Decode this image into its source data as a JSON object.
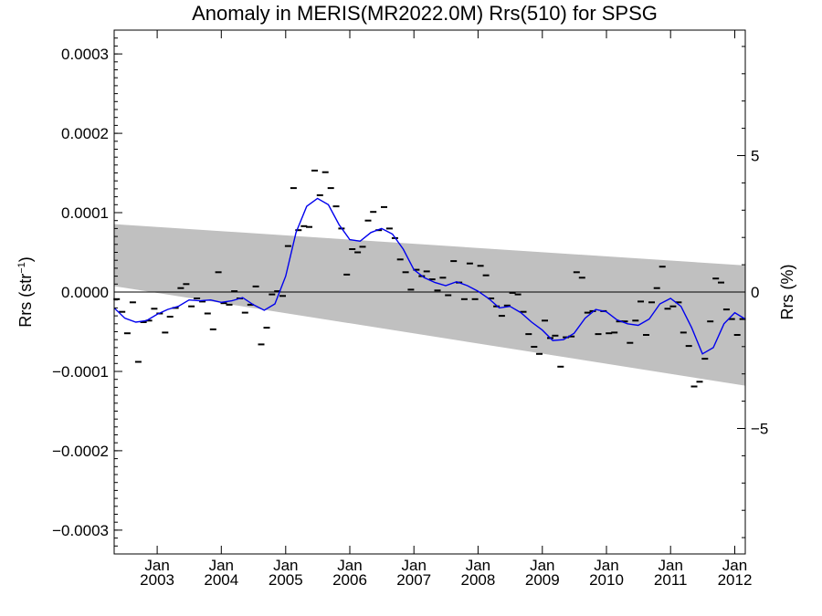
{
  "chart_data": {
    "type": "scatter",
    "title": "Anomaly in MERIS(MR2022.0M) Rrs(510) for SPSG",
    "ylabel": "Rrs (str",
    "ylabel_sup": "−1",
    "ylabel_close": ")",
    "y2label": "Rrs (%)",
    "ylim": [
      -0.00033,
      0.00033
    ],
    "y2lim": [
      -9.6,
      9.6
    ],
    "xlim": [
      "2002-05-01",
      "2012-03-01"
    ],
    "yticks": [
      {
        "v": 0.0003,
        "label": "0.0003"
      },
      {
        "v": 0.0002,
        "label": "0.0002"
      },
      {
        "v": 0.0001,
        "label": "0.0001"
      },
      {
        "v": 0.0,
        "label": "0.0000"
      },
      {
        "v": -0.0001,
        "label": "−0.0001"
      },
      {
        "v": -0.0002,
        "label": "−0.0002"
      },
      {
        "v": -0.0003,
        "label": "−0.0003"
      }
    ],
    "y2ticks": [
      {
        "v": 5,
        "label": "5"
      },
      {
        "v": 0,
        "label": "0"
      },
      {
        "v": -5,
        "label": "−5"
      }
    ],
    "xticks": [
      {
        "date": "2003-01",
        "month": "Jan",
        "year": "2003"
      },
      {
        "date": "2004-01",
        "month": "Jan",
        "year": "2004"
      },
      {
        "date": "2005-01",
        "month": "Jan",
        "year": "2005"
      },
      {
        "date": "2006-01",
        "month": "Jan",
        "year": "2006"
      },
      {
        "date": "2007-01",
        "month": "Jan",
        "year": "2007"
      },
      {
        "date": "2008-01",
        "month": "Jan",
        "year": "2008"
      },
      {
        "date": "2009-01",
        "month": "Jan",
        "year": "2009"
      },
      {
        "date": "2010-01",
        "month": "Jan",
        "year": "2010"
      },
      {
        "date": "2011-01",
        "month": "Jan",
        "year": "2011"
      },
      {
        "date": "2012-01",
        "month": "Jan",
        "year": "2012"
      }
    ],
    "band": {
      "color": "#c0c0c0",
      "x": [
        "2002-05-01",
        "2012-03-01"
      ],
      "upper": [
        8.55e-05,
        3.35e-05
      ],
      "lower": [
        7.5e-06,
        -0.000118
      ]
    },
    "zero_line": 0,
    "monthly_points": {
      "color": "#000000",
      "x": [
        "2002-05",
        "2002-06",
        "2002-07",
        "2002-08",
        "2002-09",
        "2002-10",
        "2002-11",
        "2002-12",
        "2003-01",
        "2003-02",
        "2003-03",
        "2003-04",
        "2003-05",
        "2003-06",
        "2003-07",
        "2003-08",
        "2003-09",
        "2003-10",
        "2003-11",
        "2003-12",
        "2004-01",
        "2004-02",
        "2004-03",
        "2004-04",
        "2004-05",
        "2004-06",
        "2004-07",
        "2004-08",
        "2004-09",
        "2004-10",
        "2004-11",
        "2004-12",
        "2005-01",
        "2005-02",
        "2005-03",
        "2005-04",
        "2005-05",
        "2005-06",
        "2005-07",
        "2005-08",
        "2005-09",
        "2005-10",
        "2005-11",
        "2005-12",
        "2006-01",
        "2006-02",
        "2006-03",
        "2006-04",
        "2006-05",
        "2006-06",
        "2006-07",
        "2006-08",
        "2006-09",
        "2006-10",
        "2006-11",
        "2006-12",
        "2007-01",
        "2007-02",
        "2007-03",
        "2007-04",
        "2007-05",
        "2007-06",
        "2007-07",
        "2007-08",
        "2007-09",
        "2007-10",
        "2007-11",
        "2007-12",
        "2008-01",
        "2008-02",
        "2008-03",
        "2008-04",
        "2008-05",
        "2008-06",
        "2008-07",
        "2008-08",
        "2008-09",
        "2008-10",
        "2008-11",
        "2008-12",
        "2009-01",
        "2009-02",
        "2009-03",
        "2009-04",
        "2009-05",
        "2009-06",
        "2009-07",
        "2009-08",
        "2009-09",
        "2009-10",
        "2009-11",
        "2009-12",
        "2010-01",
        "2010-02",
        "2010-03",
        "2010-04",
        "2010-05",
        "2010-06",
        "2010-07",
        "2010-08",
        "2010-09",
        "2010-10",
        "2010-11",
        "2010-12",
        "2011-01",
        "2011-02",
        "2011-03",
        "2011-04",
        "2011-05",
        "2011-06",
        "2011-07",
        "2011-08",
        "2011-09",
        "2011-10",
        "2011-11",
        "2011-12",
        "2012-01",
        "2012-02"
      ],
      "y": [
        -9e-06,
        -2.5e-05,
        -5.2e-05,
        -1.3e-05,
        -8.8e-05,
        -3.8e-05,
        -3.6e-05,
        -2.1e-05,
        -2.7e-05,
        -5.1e-05,
        -3.1e-05,
        -2e-05,
        5e-06,
        1e-05,
        -1.8e-05,
        -8e-06,
        -1.2e-05,
        -2.7e-05,
        -4.7e-05,
        2.5e-05,
        -1.4e-05,
        -1.6e-05,
        1e-06,
        -8e-06,
        -2.6e-05,
        -1.6e-05,
        7e-06,
        -6.6e-05,
        -4.5e-05,
        -3e-06,
        1e-06,
        -5e-06,
        5.8e-05,
        0.000131,
        7.8e-05,
        8.3e-05,
        8.2e-05,
        0.000153,
        0.000122,
        0.000151,
        0.000131,
        0.000108,
        8e-05,
        2.2e-05,
        5.4e-05,
        5e-05,
        5.7e-05,
        9e-05,
        0.000101,
        7.8e-05,
        0.000107,
        8e-05,
        6.8e-05,
        4.1e-05,
        2.5e-05,
        3e-06,
        2.8e-05,
        2e-05,
        2.6e-05,
        1.6e-05,
        2e-06,
        1.8e-05,
        -4e-06,
        3.9e-05,
        1.2e-05,
        -9e-06,
        3.6e-05,
        -9e-06,
        3.3e-05,
        2.1e-05,
        -8e-06,
        -1.8e-05,
        -3e-05,
        -1.7e-05,
        -1e-06,
        -3e-06,
        -2.5e-05,
        -5.3e-05,
        -6.9e-05,
        -7.8e-05,
        -3.6e-05,
        -5.8e-05,
        -5.5e-05,
        -9.4e-05,
        -5.7e-05,
        -5.6e-05,
        2.5e-05,
        1.8e-05,
        -2.6e-05,
        -2.4e-05,
        -5.3e-05,
        -2.4e-05,
        -5.2e-05,
        -5.1e-05,
        -3.7e-05,
        -3.7e-05,
        -6.4e-05,
        -3.6e-05,
        -1.2e-05,
        -5.4e-05,
        -1.3e-05,
        5e-06,
        3.2e-05,
        -2.1e-05,
        -1.8e-05,
        -1.3e-05,
        -5.1e-05,
        -6.8e-05,
        -0.000119,
        -0.000113,
        -8.4e-05,
        -3.7e-05,
        1.7e-05,
        1.2e-05,
        -2.2e-05,
        -3.4e-05,
        -5.4e-05,
        -3.4e-05
      ]
    },
    "smoothed_series": {
      "color": "#0000ee",
      "x": [
        "2002-05-01",
        "2002-07-01",
        "2002-09-01",
        "2002-11-01",
        "2003-01-01",
        "2003-03-01",
        "2003-05-01",
        "2003-07-01",
        "2003-09-01",
        "2003-11-01",
        "2004-01-01",
        "2004-03-01",
        "2004-05-01",
        "2004-07-01",
        "2004-09-01",
        "2004-11-01",
        "2005-01-01",
        "2005-03-01",
        "2005-05-01",
        "2005-07-01",
        "2005-09-01",
        "2005-11-01",
        "2006-01-01",
        "2006-03-01",
        "2006-05-01",
        "2006-07-01",
        "2006-09-01",
        "2006-11-01",
        "2007-01-01",
        "2007-03-01",
        "2007-05-01",
        "2007-07-01",
        "2007-09-01",
        "2007-11-01",
        "2008-01-01",
        "2008-03-01",
        "2008-05-01",
        "2008-07-01",
        "2008-09-01",
        "2008-11-01",
        "2009-01-01",
        "2009-03-01",
        "2009-05-01",
        "2009-07-01",
        "2009-09-01",
        "2009-11-01",
        "2010-01-01",
        "2010-03-01",
        "2010-05-01",
        "2010-07-01",
        "2010-09-01",
        "2010-11-01",
        "2011-01-01",
        "2011-03-01",
        "2011-05-01",
        "2011-07-01",
        "2011-09-01",
        "2011-11-01",
        "2012-01-01",
        "2012-03-01"
      ],
      "y": [
        -2e-05,
        -3.3e-05,
        -3.8e-05,
        -3.6e-05,
        -2.8e-05,
        -2.2e-05,
        -1.8e-05,
        -1e-05,
        -1.1e-05,
        -1e-05,
        -1.3e-05,
        -1.1e-05,
        -7e-06,
        -1.6e-05,
        -2.3e-05,
        -1.5e-05,
        2e-05,
        7.5e-05,
        0.000108,
        0.000118,
        0.00011,
        8.5e-05,
        6.6e-05,
        6.4e-05,
        7.5e-05,
        8e-05,
        7.3e-05,
        5.4e-05,
        2.8e-05,
        1.8e-05,
        1.2e-05,
        8e-06,
        1.3e-05,
        8e-06,
        1e-06,
        -8e-06,
        -2e-05,
        -1.8e-05,
        -2.6e-05,
        -3.8e-05,
        -4.8e-05,
        -6.1e-05,
        -6e-05,
        -5.2e-05,
        -3.3e-05,
        -2.2e-05,
        -2.5e-05,
        -3.5e-05,
        -4e-05,
        -4.2e-05,
        -3.4e-05,
        -1.5e-05,
        -8e-06,
        -1.8e-05,
        -4.5e-05,
        -7.8e-05,
        -7e-05,
        -4e-05,
        -2.6e-05,
        -3.4e-05
      ]
    }
  }
}
